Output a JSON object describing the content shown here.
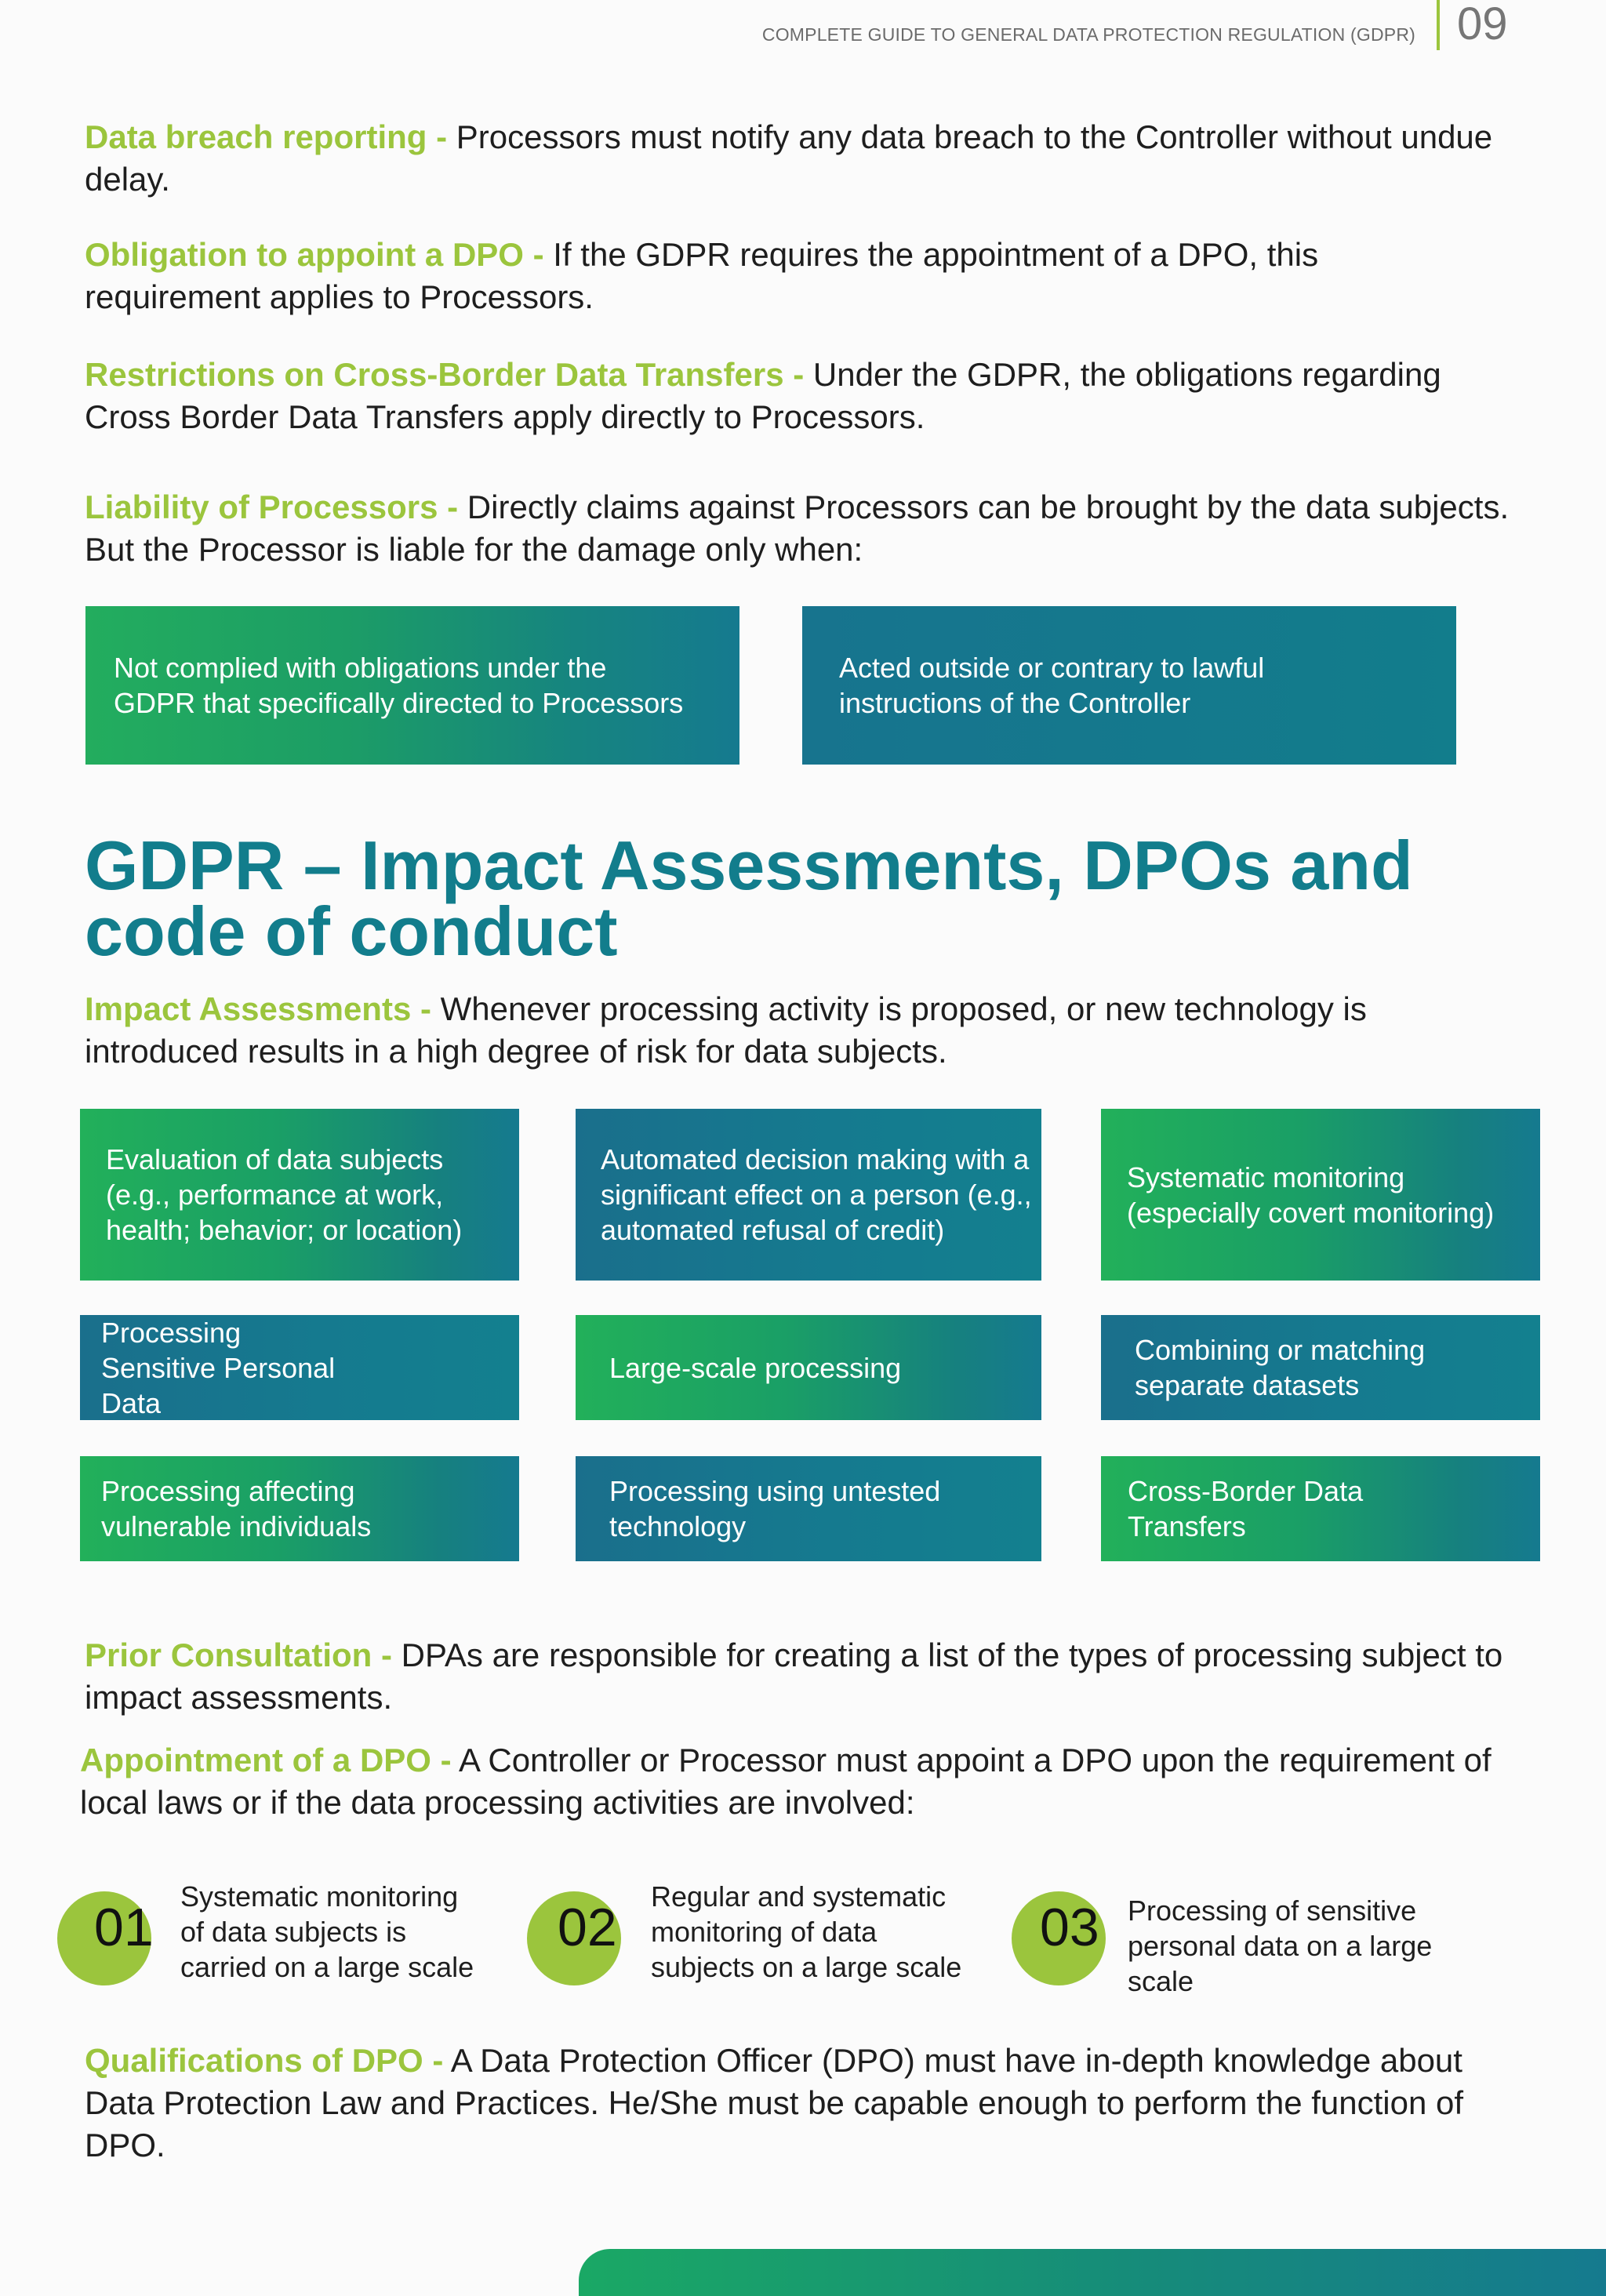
{
  "header": {
    "title": "COMPLETE GUIDE TO GENERAL DATA PROTECTION REGULATION (GDPR)",
    "page_number": "09"
  },
  "paragraphs": {
    "breach": {
      "lead": "Data breach reporting -",
      "text": " Processors must notify any data breach to the Controller without undue delay."
    },
    "dpo": {
      "lead": "Obligation to appoint a DPO -",
      "text": " If the GDPR requires the appointment of a DPO, this requirement applies to Processors."
    },
    "transfers": {
      "lead": "Restrictions on Cross-Border Data Transfers -",
      "text": " Under the GDPR, the obligations regarding Cross Border Data Transfers apply directly to Processors."
    },
    "liability": {
      "lead": "Liability of Processors -",
      "text": " Directly claims against Processors can be brought by the data subjects. But the Processor is liable for the damage only when:"
    }
  },
  "liability_boxes": [
    "Not complied with obligations under the GDPR that specifically directed to Processors",
    "Acted outside or contrary to lawful instructions of the Controller"
  ],
  "section_heading": "GDPR – Impact Assessments, DPOs and code of conduct",
  "impact": {
    "lead": "Impact Assessments -",
    "text": " Whenever processing activity is proposed, or new technology is introduced results in a high degree of risk for data subjects."
  },
  "impact_grid": [
    "Evaluation of data subjects (e.g., performance at work, health; behavior; or location)",
    "Automated decision making with a significant effect on a person (e.g., automated refusal of credit)",
    "Systematic monitoring (especially covert monitoring)",
    "Processing Sensitive Personal Data",
    "Large-scale processing",
    "Combining or matching separate datasets",
    "Processing affecting vulnerable individuals",
    "Processing using untested technology",
    "Cross-Border Data Transfers"
  ],
  "prior": {
    "lead": "Prior Consultation -",
    "text": " DPAs are responsible for creating a list of the types of processing subject to impact assessments."
  },
  "appointment": {
    "lead": "Appointment of a DPO -",
    "text": " A Controller or Processor must appoint a DPO upon the requirement of local laws or if the data processing activities are involved:"
  },
  "steps": [
    {
      "num": "01",
      "text": "Systematic monitoring of data subjects is carried on a large scale"
    },
    {
      "num": "02",
      "text": "Regular and systematic monitoring of data subjects on a large scale"
    },
    {
      "num": "03",
      "text": "Processing of sensitive personal data on a large scale"
    }
  ],
  "qualifications": {
    "lead": "Qualifications of DPO -",
    "text": " A Data Protection Officer (DPO) must have in-depth knowledge about Data Protection Law and Practices. He/She must be capable enough to perform the function of DPO."
  },
  "colors": {
    "accent_green": "#9bc53d",
    "heading_teal": "#127d8c",
    "box_green": "#22b05a",
    "box_teal": "#157a8f"
  }
}
